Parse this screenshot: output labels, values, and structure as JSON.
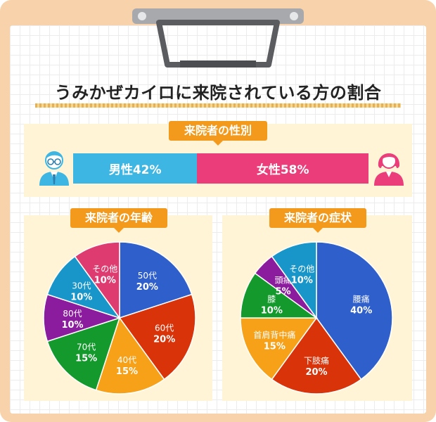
{
  "title": "うみかぜカイロに来院されている方の割合",
  "gender": {
    "heading": "来院者の性別",
    "male_label": "男性42%",
    "female_label": "女性58%",
    "male_color": "#3db6e3",
    "female_color": "#ea3d7a"
  },
  "chart_data": [
    {
      "type": "bar",
      "title": "来院者の性別",
      "categories": [
        "男性",
        "女性"
      ],
      "values": [
        42,
        58
      ],
      "colors": [
        "#3db6e3",
        "#ea3d7a"
      ]
    },
    {
      "type": "pie",
      "title": "来院者の年齢",
      "slices": [
        {
          "label": "50代",
          "pct": "20%",
          "value": 20,
          "color": "#2f5fcb"
        },
        {
          "label": "60代",
          "pct": "20%",
          "value": 20,
          "color": "#d9330a"
        },
        {
          "label": "40代",
          "pct": "15%",
          "value": 15,
          "color": "#f6a118"
        },
        {
          "label": "70代",
          "pct": "15%",
          "value": 15,
          "color": "#149a2c"
        },
        {
          "label": "80代",
          "pct": "10%",
          "value": 10,
          "color": "#8c1c9e"
        },
        {
          "label": "30代",
          "pct": "10%",
          "value": 10,
          "color": "#1895c9"
        },
        {
          "label": "その他",
          "pct": "10%",
          "value": 10,
          "color": "#de3c71"
        }
      ]
    },
    {
      "type": "pie",
      "title": "来院者の症状",
      "slices": [
        {
          "label": "腰痛",
          "pct": "40%",
          "value": 40,
          "color": "#2f5fcb"
        },
        {
          "label": "下肢痛",
          "pct": "20%",
          "value": 20,
          "color": "#d9330a"
        },
        {
          "label": "首肩背中痛",
          "pct": "15%",
          "value": 15,
          "color": "#f6a118"
        },
        {
          "label": "膝",
          "pct": "10%",
          "value": 10,
          "color": "#149a2c"
        },
        {
          "label": "頭痛",
          "pct": "5%",
          "value": 5,
          "color": "#8c1c9e"
        },
        {
          "label": "その他",
          "pct": "10%",
          "value": 10,
          "color": "#1895c9"
        }
      ]
    }
  ]
}
